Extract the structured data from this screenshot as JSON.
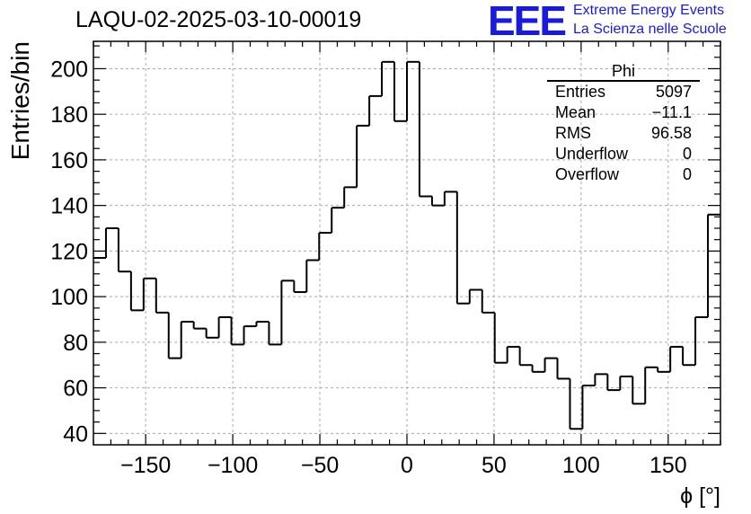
{
  "header": {
    "run_title": "LAQU-02-2025-03-10-00019",
    "logo_text": "EEE",
    "logo_line1": "Extreme Energy Events",
    "logo_line2": "La Scienza nelle Scuole"
  },
  "stats_box": {
    "title": "Phi",
    "rows": [
      {
        "label": "Entries",
        "value": "5097"
      },
      {
        "label": "Mean",
        "value": "−11.1"
      },
      {
        "label": "RMS",
        "value": "96.58"
      },
      {
        "label": "Underflow",
        "value": "0"
      },
      {
        "label": "Overflow",
        "value": "0"
      }
    ]
  },
  "chart_data": {
    "type": "histogram",
    "title": "LAQU-02-2025-03-10-00019",
    "xlabel": "ϕ [°]",
    "ylabel": "Entries/bin",
    "xlim": [
      -180,
      180
    ],
    "ylim": [
      35,
      212
    ],
    "bin_width": 7.2,
    "bin_edges_start": -180,
    "values": [
      117,
      130,
      111,
      94,
      108,
      93,
      73,
      89,
      86,
      82,
      91,
      79,
      87,
      89,
      79,
      107,
      102,
      116,
      128,
      139,
      148,
      175,
      188,
      203,
      177,
      203,
      144,
      140,
      146,
      97,
      103,
      93,
      71,
      78,
      70,
      67,
      73,
      64,
      42,
      61,
      66,
      59,
      65,
      53,
      69,
      67,
      78,
      70,
      91,
      136
    ],
    "x_ticks": [
      -150,
      -100,
      -50,
      0,
      50,
      100,
      150
    ],
    "x_tick_labels": [
      "−150",
      "−100",
      "−50",
      "0",
      "50",
      "100",
      "150"
    ],
    "y_ticks": [
      40,
      60,
      80,
      100,
      120,
      140,
      160,
      180,
      200
    ],
    "y_tick_labels": [
      "40",
      "60",
      "80",
      "100",
      "120",
      "140",
      "160",
      "180",
      "200"
    ],
    "grid": true,
    "legend": "stats box top-right"
  }
}
